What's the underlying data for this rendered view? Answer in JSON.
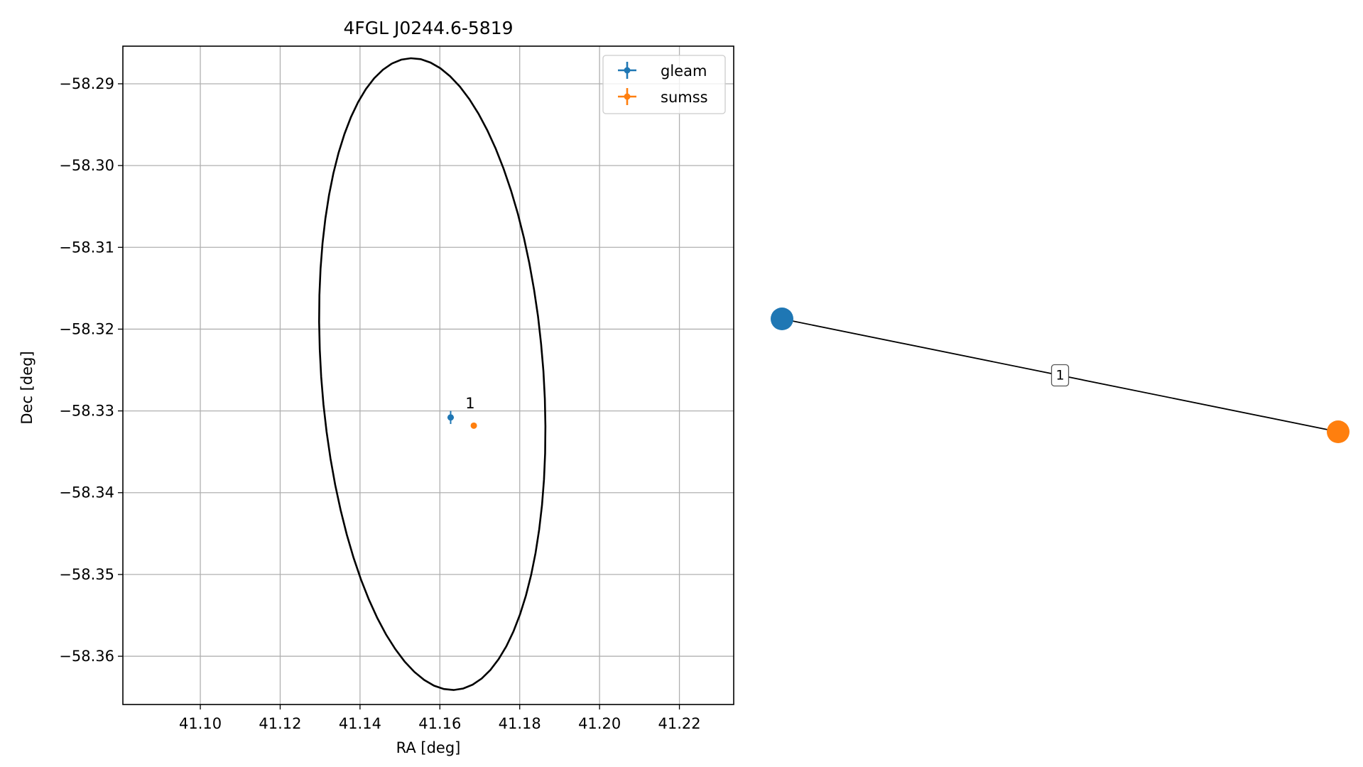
{
  "colors": {
    "gleam": "#1f77b4",
    "sumss": "#ff7f0e",
    "ellipse": "#000000",
    "grid": "#b0b0b0",
    "edge": "#000000"
  },
  "chart_data": [
    {
      "type": "scatter",
      "title": "4FGL J0244.6-5819",
      "xlabel": "RA [deg]",
      "ylabel": "Dec [deg]",
      "xlim": [
        41.0806,
        41.2336
      ],
      "ylim": [
        -58.3659,
        -58.2854
      ],
      "x_ticks": [
        41.1,
        41.12,
        41.14,
        41.16,
        41.18,
        41.2,
        41.22
      ],
      "x_tick_labels": [
        "41.10",
        "41.12",
        "41.14",
        "41.16",
        "41.18",
        "41.20",
        "41.22"
      ],
      "y_ticks": [
        -58.29,
        -58.3,
        -58.31,
        -58.32,
        -58.33,
        -58.34,
        -58.35,
        -58.36
      ],
      "y_tick_labels": [
        "−58.29",
        "−58.30",
        "−58.31",
        "−58.32",
        "−58.33",
        "−58.34",
        "−58.35",
        "−58.36"
      ],
      "grid": true,
      "legend_position": "upper-right",
      "series": [
        {
          "name": "gleam",
          "color_key": "gleam",
          "points": [
            {
              "x": 41.1627,
              "y": -58.3308,
              "xerr": 0.0008,
              "yerr": 0.0008
            }
          ]
        },
        {
          "name": "sumss",
          "color_key": "sumss",
          "points": [
            {
              "x": 41.1685,
              "y": -58.3318,
              "xerr": 0.0002,
              "yerr": 0.0002
            }
          ]
        }
      ],
      "annotations": [
        {
          "text": "1",
          "x": 41.1664,
          "y": -58.3297
        }
      ],
      "ellipse": {
        "center": [
          41.1581,
          -58.3255
        ],
        "semi_axes": [
          0.0393,
          0.0274
        ],
        "angle_deg": 104.9
      }
    },
    {
      "type": "graph",
      "nodes": [
        {
          "id": "gleam",
          "color_key": "gleam",
          "x": 0.0,
          "y": 0.0
        },
        {
          "id": "sumss",
          "color_key": "sumss",
          "x": 1.0,
          "y": -0.2
        }
      ],
      "edges": [
        {
          "from": "gleam",
          "to": "sumss",
          "label": "1"
        }
      ]
    }
  ]
}
